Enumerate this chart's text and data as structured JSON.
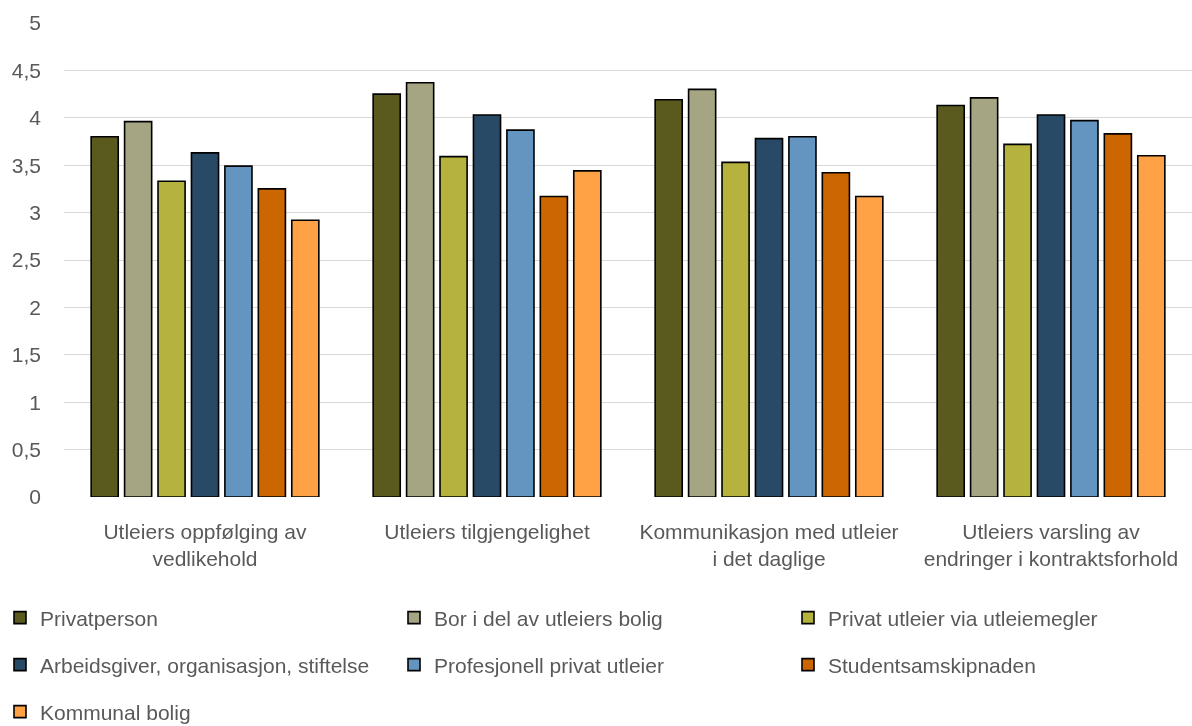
{
  "chart_data": {
    "type": "bar",
    "categories": [
      "Utleiers oppfølging av vedlikehold",
      "Utleiers tilgjengelighet",
      "Kommunikasjon med utleier i det daglige",
      "Utleiers varsling av endringer i kontraktsforhold"
    ],
    "series": [
      {
        "name": "Privatperson",
        "color": "#5b5a1e",
        "values": [
          3.8,
          4.25,
          4.19,
          4.13
        ]
      },
      {
        "name": "Bor i del av utleiers bolig",
        "color": "#a6a583",
        "values": [
          3.96,
          4.37,
          4.3,
          4.21
        ]
      },
      {
        "name": "Privat utleier via utleiemegler",
        "color": "#b5b33e",
        "values": [
          3.33,
          3.59,
          3.53,
          3.72
        ]
      },
      {
        "name": "Arbeidsgiver, organisasjon, stiftelse",
        "color": "#284a66",
        "values": [
          3.63,
          4.03,
          3.78,
          4.03
        ]
      },
      {
        "name": "Profesjonell privat utleier",
        "color": "#6395c0",
        "values": [
          3.49,
          3.87,
          3.8,
          3.97
        ]
      },
      {
        "name": "Studentsamskipnaden",
        "color": "#cc6600",
        "values": [
          3.25,
          3.17,
          3.42,
          3.83
        ]
      },
      {
        "name": "Kommunal bolig",
        "color": "#ffa245",
        "values": [
          2.92,
          3.44,
          3.17,
          3.6
        ]
      }
    ],
    "ylim": [
      0,
      5
    ],
    "yticks": [
      0,
      {
        "value": 0.5,
        "label": "0,5"
      },
      1,
      {
        "value": 1.5,
        "label": "1,5"
      },
      2,
      {
        "value": 2.5,
        "label": "2,5"
      },
      3,
      {
        "value": 3.5,
        "label": "3,5"
      },
      4,
      {
        "value": 4.5,
        "label": "4,5"
      },
      5
    ],
    "grid": "y",
    "legend": "bottom"
  }
}
